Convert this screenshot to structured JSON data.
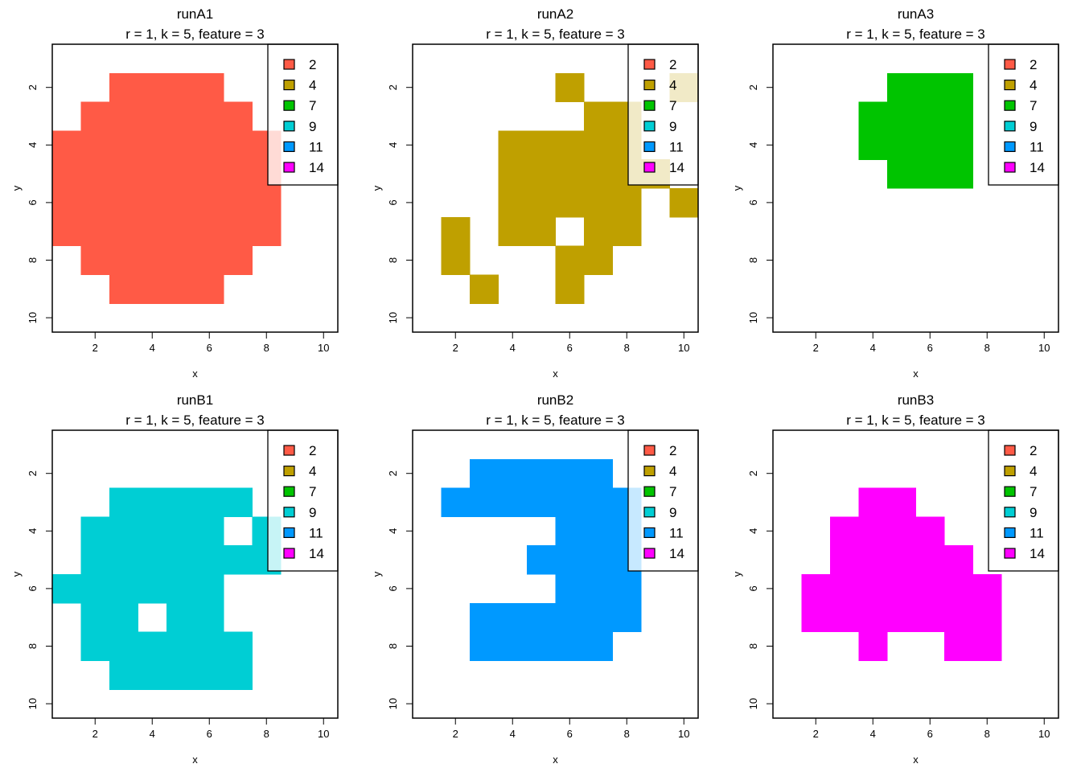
{
  "legend": {
    "labels": [
      "2",
      "4",
      "7",
      "9",
      "11",
      "14"
    ],
    "colors": [
      "#FF5A46",
      "#BFA000",
      "#00C400",
      "#00CED4",
      "#0099FF",
      "#FF00FF"
    ]
  },
  "chart_data": [
    {
      "type": "heatmap",
      "title": "runA1",
      "subtitle": "r = 1, k = 5, feature = 3",
      "xlabel": "x",
      "ylabel": "y",
      "xlim": [
        0.5,
        10.5
      ],
      "ylim": [
        0.5,
        10.5
      ],
      "y_reversed": true,
      "x_ticks": [
        "2",
        "4",
        "6",
        "8",
        "10"
      ],
      "y_ticks": [
        "2",
        "4",
        "6",
        "8",
        "10"
      ],
      "color": "#FF5A46",
      "class_label": "2",
      "rows": [
        {
          "y": 2,
          "x": [
            3,
            4,
            5,
            6
          ]
        },
        {
          "y": 3,
          "x": [
            2,
            3,
            4,
            5,
            6,
            7
          ]
        },
        {
          "y": 4,
          "x": [
            1,
            2,
            3,
            4,
            5,
            6,
            7,
            8
          ]
        },
        {
          "y": 5,
          "x": [
            1,
            2,
            3,
            4,
            5,
            6,
            7,
            8
          ]
        },
        {
          "y": 6,
          "x": [
            1,
            2,
            3,
            4,
            5,
            6,
            7,
            8
          ]
        },
        {
          "y": 7,
          "x": [
            1,
            2,
            3,
            4,
            5,
            6,
            7,
            8
          ]
        },
        {
          "y": 8,
          "x": [
            2,
            3,
            4,
            5,
            6,
            7
          ]
        },
        {
          "y": 9,
          "x": [
            3,
            4,
            5,
            6
          ]
        }
      ]
    },
    {
      "type": "heatmap",
      "title": "runA2",
      "subtitle": "r = 1, k = 5, feature = 3",
      "xlabel": "x",
      "ylabel": "y",
      "xlim": [
        0.5,
        10.5
      ],
      "ylim": [
        0.5,
        10.5
      ],
      "y_reversed": true,
      "x_ticks": [
        "2",
        "4",
        "6",
        "8",
        "10"
      ],
      "y_ticks": [
        "2",
        "4",
        "6",
        "8",
        "10"
      ],
      "color": "#BFA000",
      "class_label": "4",
      "rows": [
        {
          "y": 2,
          "x": [
            6,
            10
          ]
        },
        {
          "y": 3,
          "x": [
            7,
            8
          ]
        },
        {
          "y": 4,
          "x": [
            4,
            5,
            6,
            7,
            8
          ]
        },
        {
          "y": 5,
          "x": [
            4,
            5,
            6,
            7,
            8,
            9
          ]
        },
        {
          "y": 6,
          "x": [
            4,
            5,
            6,
            7,
            8,
            10
          ]
        },
        {
          "y": 7,
          "x": [
            2,
            4,
            5,
            7,
            8
          ]
        },
        {
          "y": 8,
          "x": [
            2,
            6,
            7
          ]
        },
        {
          "y": 9,
          "x": [
            3,
            6
          ]
        }
      ]
    },
    {
      "type": "heatmap",
      "title": "runA3",
      "subtitle": "r = 1, k = 5, feature = 3",
      "xlabel": "x",
      "ylabel": "y",
      "xlim": [
        0.5,
        10.5
      ],
      "ylim": [
        0.5,
        10.5
      ],
      "y_reversed": true,
      "x_ticks": [
        "2",
        "4",
        "6",
        "8",
        "10"
      ],
      "y_ticks": [
        "2",
        "4",
        "6",
        "8",
        "10"
      ],
      "color": "#00C400",
      "class_label": "7",
      "rows": [
        {
          "y": 2,
          "x": [
            5,
            6,
            7
          ]
        },
        {
          "y": 3,
          "x": [
            4,
            5,
            6,
            7
          ]
        },
        {
          "y": 4,
          "x": [
            4,
            5,
            6,
            7
          ]
        },
        {
          "y": 5,
          "x": [
            5,
            6,
            7
          ]
        }
      ]
    },
    {
      "type": "heatmap",
      "title": "runB1",
      "subtitle": "r = 1, k = 5, feature = 3",
      "xlabel": "x",
      "ylabel": "y",
      "xlim": [
        0.5,
        10.5
      ],
      "ylim": [
        0.5,
        10.5
      ],
      "y_reversed": true,
      "x_ticks": [
        "2",
        "4",
        "6",
        "8",
        "10"
      ],
      "y_ticks": [
        "2",
        "4",
        "6",
        "8",
        "10"
      ],
      "color": "#00CED4",
      "class_label": "9",
      "rows": [
        {
          "y": 3,
          "x": [
            3,
            4,
            5,
            6,
            7
          ]
        },
        {
          "y": 4,
          "x": [
            2,
            3,
            4,
            5,
            6,
            8
          ]
        },
        {
          "y": 5,
          "x": [
            2,
            3,
            4,
            5,
            6,
            7,
            8
          ]
        },
        {
          "y": 6,
          "x": [
            1,
            2,
            3,
            4,
            5,
            6
          ]
        },
        {
          "y": 7,
          "x": [
            2,
            3,
            5,
            6
          ]
        },
        {
          "y": 8,
          "x": [
            2,
            3,
            4,
            5,
            6,
            7
          ]
        },
        {
          "y": 9,
          "x": [
            3,
            4,
            5,
            6,
            7
          ]
        }
      ]
    },
    {
      "type": "heatmap",
      "title": "runB2",
      "subtitle": "r = 1, k = 5, feature = 3",
      "xlabel": "x",
      "ylabel": "y",
      "xlim": [
        0.5,
        10.5
      ],
      "ylim": [
        0.5,
        10.5
      ],
      "y_reversed": true,
      "x_ticks": [
        "2",
        "4",
        "6",
        "8",
        "10"
      ],
      "y_ticks": [
        "2",
        "4",
        "6",
        "8",
        "10"
      ],
      "color": "#0099FF",
      "class_label": "11",
      "rows": [
        {
          "y": 2,
          "x": [
            3,
            4,
            5,
            6,
            7
          ]
        },
        {
          "y": 3,
          "x": [
            2,
            3,
            4,
            5,
            6,
            7,
            8
          ]
        },
        {
          "y": 4,
          "x": [
            6,
            7,
            8
          ]
        },
        {
          "y": 5,
          "x": [
            5,
            6,
            7,
            8
          ]
        },
        {
          "y": 6,
          "x": [
            6,
            7,
            8
          ]
        },
        {
          "y": 7,
          "x": [
            3,
            4,
            5,
            6,
            7,
            8
          ]
        },
        {
          "y": 8,
          "x": [
            3,
            4,
            5,
            6,
            7
          ]
        }
      ]
    },
    {
      "type": "heatmap",
      "title": "runB3",
      "subtitle": "r = 1, k = 5, feature = 3",
      "xlabel": "x",
      "ylabel": "y",
      "xlim": [
        0.5,
        10.5
      ],
      "ylim": [
        0.5,
        10.5
      ],
      "y_reversed": true,
      "x_ticks": [
        "2",
        "4",
        "6",
        "8",
        "10"
      ],
      "y_ticks": [
        "2",
        "4",
        "6",
        "8",
        "10"
      ],
      "color": "#FF00FF",
      "class_label": "14",
      "rows": [
        {
          "y": 3,
          "x": [
            4,
            5
          ]
        },
        {
          "y": 4,
          "x": [
            3,
            4,
            5,
            6
          ]
        },
        {
          "y": 5,
          "x": [
            3,
            4,
            5,
            6,
            7
          ]
        },
        {
          "y": 6,
          "x": [
            2,
            3,
            4,
            5,
            6,
            7,
            8
          ]
        },
        {
          "y": 7,
          "x": [
            2,
            3,
            4,
            5,
            6,
            7,
            8
          ]
        },
        {
          "y": 8,
          "x": [
            4,
            7,
            8
          ]
        }
      ]
    }
  ]
}
